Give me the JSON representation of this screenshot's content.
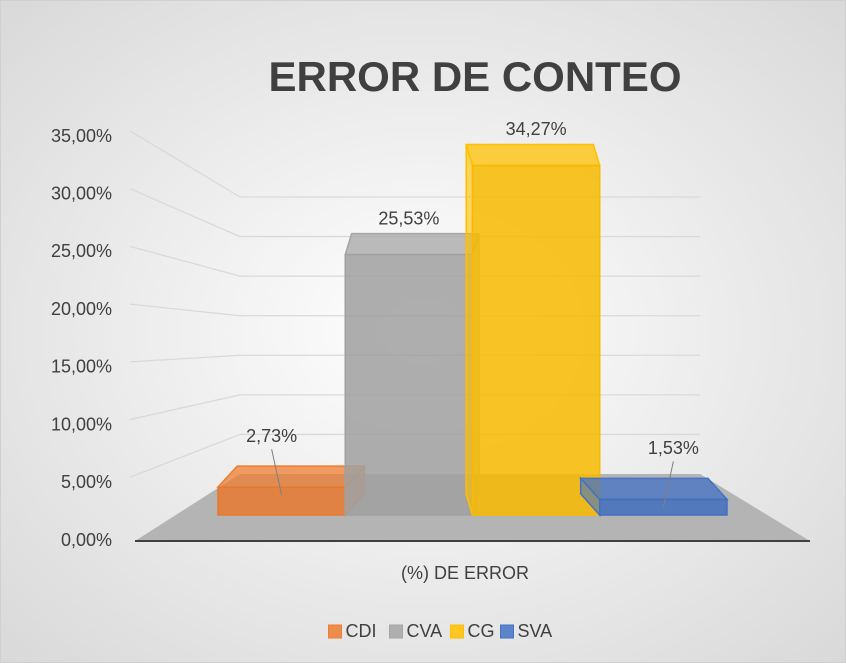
{
  "chart_data": {
    "type": "bar3d",
    "title": "ERROR DE CONTEO",
    "categories": [
      "(%) DE ERROR"
    ],
    "series": [
      {
        "name": "CDI",
        "color": "#ed7d31",
        "values": [
          2.73
        ],
        "value_labels": [
          "2,73%"
        ]
      },
      {
        "name": "CVA",
        "color": "#a5a5a5",
        "values": [
          25.53
        ],
        "value_labels": [
          "25,53%"
        ]
      },
      {
        "name": "CG",
        "color": "#ffc000",
        "values": [
          34.27
        ],
        "value_labels": [
          "34,27%"
        ]
      },
      {
        "name": "SVA",
        "color": "#4472c4",
        "values": [
          1.53
        ],
        "value_labels": [
          "1,53%"
        ]
      }
    ],
    "ylim": [
      0,
      35
    ],
    "yticks": [
      {
        "value": 0,
        "label": "0,00%"
      },
      {
        "value": 5,
        "label": "5,00%"
      },
      {
        "value": 10,
        "label": "10,00%"
      },
      {
        "value": 15,
        "label": "15,00%"
      },
      {
        "value": 20,
        "label": "20,00%"
      },
      {
        "value": 25,
        "label": "25,00%"
      },
      {
        "value": 30,
        "label": "30,00%"
      },
      {
        "value": 35,
        "label": "35,00%"
      }
    ],
    "grid": true,
    "legend": "bottom"
  }
}
